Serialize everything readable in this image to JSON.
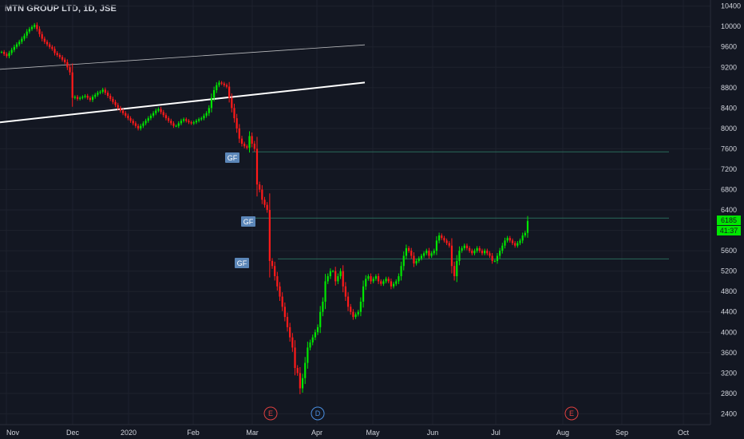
{
  "header": {
    "title": "MTN GROUP LTD, 1D, JSE"
  },
  "price_axis": {
    "last_price": "6185",
    "countdown": "41:37"
  },
  "markers": {
    "gap_label": "GF",
    "earnings_label": "E",
    "dividend_label": "D"
  },
  "colors": {
    "background": "#131722",
    "up": "#00e600",
    "down": "#ff1a1a",
    "axis_text": "#d1d4dc",
    "gap_box": "#5b86b8",
    "gap_line": "#2a6a5a"
  },
  "chart_data": {
    "type": "candlestick",
    "title": "MTN GROUP LTD, 1D, JSE",
    "x_ticks": [
      "Nov",
      "Dec",
      "2020",
      "Feb",
      "Mar",
      "Apr",
      "May",
      "Jun",
      "Jul",
      "Aug",
      "Sep",
      "Oct"
    ],
    "y_ticks": [
      10400,
      10000,
      9600,
      9200,
      8800,
      8400,
      8000,
      7600,
      7200,
      6800,
      6400,
      6000,
      5600,
      5200,
      4800,
      4400,
      4000,
      3600,
      3200,
      2800,
      2400
    ],
    "ylim": [
      2250,
      10520
    ],
    "close_series": [
      9500,
      9460,
      9420,
      9480,
      9540,
      9600,
      9650,
      9700,
      9760,
      9820,
      9900,
      9950,
      9990,
      10030,
      9950,
      9850,
      9760,
      9700,
      9650,
      9600,
      9560,
      9480,
      9440,
      9400,
      9350,
      9300,
      9200,
      9100,
      8600,
      8620,
      8580,
      8600,
      8620,
      8640,
      8600,
      8560,
      8620,
      8660,
      8700,
      8720,
      8760,
      8700,
      8640,
      8580,
      8520,
      8460,
      8400,
      8350,
      8300,
      8250,
      8200,
      8150,
      8100,
      8050,
      8000,
      8050,
      8100,
      8150,
      8200,
      8250,
      8300,
      8350,
      8380,
      8320,
      8260,
      8200,
      8150,
      8100,
      8050,
      8050,
      8100,
      8150,
      8180,
      8150,
      8120,
      8100,
      8120,
      8150,
      8180,
      8200,
      8250,
      8300,
      8400,
      8600,
      8750,
      8850,
      8900,
      8880,
      8850,
      8820,
      8600,
      8400,
      8200,
      8000,
      7800,
      7700,
      7650,
      7620,
      7850,
      7700,
      7600,
      6900,
      6800,
      6600,
      6500,
      6400,
      5400,
      5300,
      5100,
      4900,
      4700,
      4500,
      4300,
      4100,
      3900,
      3700,
      3300,
      3200,
      2900,
      3100,
      3400,
      3700,
      3800,
      3900,
      4000,
      4100,
      4400,
      4600,
      5000,
      5100,
      5200,
      5200,
      5000,
      5100,
      5200,
      4900,
      4700,
      4500,
      4400,
      4300,
      4350,
      4400,
      4600,
      4900,
      5050,
      5100,
      5000,
      5050,
      5100,
      5000,
      4950,
      5000,
      5050,
      5000,
      4900,
      4950,
      5000,
      5100,
      5300,
      5500,
      5650,
      5600,
      5500,
      5350,
      5400,
      5450,
      5500,
      5550,
      5600,
      5500,
      5550,
      5600,
      5800,
      5900,
      5850,
      5800,
      5750,
      5700,
      5300,
      5100,
      5400,
      5600,
      5650,
      5700,
      5650,
      5600,
      5550,
      5600,
      5650,
      5600,
      5550,
      5600,
      5550,
      5500,
      5400,
      5400,
      5500,
      5600,
      5700,
      5800,
      5850,
      5800,
      5750,
      5700,
      5750,
      5800,
      5900,
      5950,
      6185
    ],
    "gap_levels": [
      7540,
      6240,
      5440
    ],
    "trendlines": [
      {
        "from": [
          "2019-10-28",
          9160
        ],
        "to": [
          "2020-04-30",
          9640
        ]
      },
      {
        "from": [
          "2019-10-28",
          8120
        ],
        "to": [
          "2020-04-30",
          8900
        ]
      }
    ]
  }
}
